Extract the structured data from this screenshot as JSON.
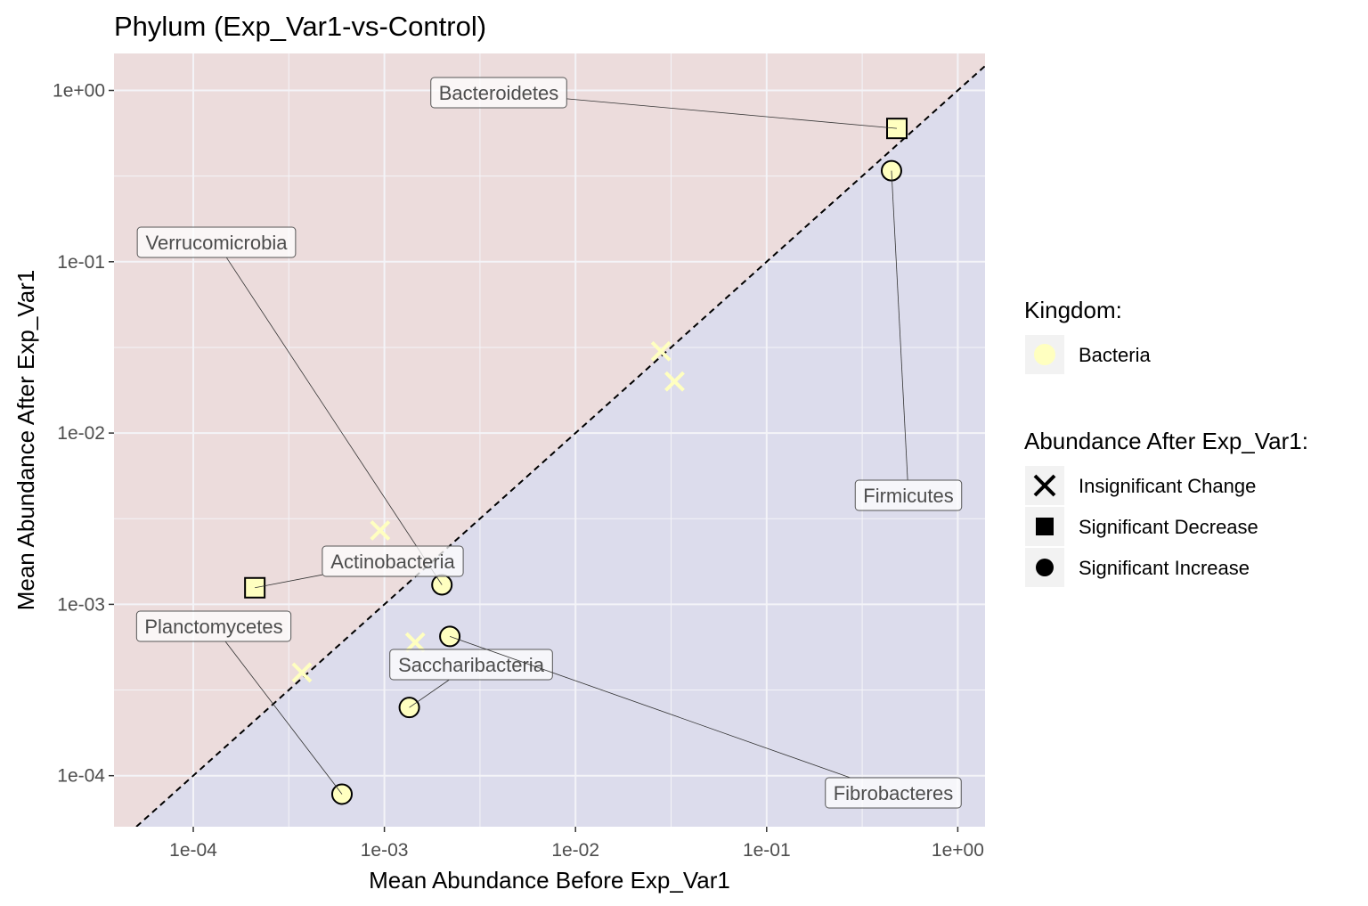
{
  "chart_data": {
    "type": "scatter",
    "title": "Phylum (Exp_Var1-vs-Control)",
    "xlabel": "Mean Abundance Before Exp_Var1",
    "ylabel": "Mean Abundance After Exp_Var1",
    "x_scale": "log10",
    "y_scale": "log10",
    "xlim": [
      5e-05,
      1.5
    ],
    "ylim": [
      5e-05,
      1.5
    ],
    "x_ticks": [
      0.0001,
      0.001,
      0.01,
      0.1,
      1
    ],
    "y_ticks": [
      0.0001,
      0.001,
      0.01,
      0.1,
      1
    ],
    "x_tick_labels": [
      "1e-04",
      "1e-03",
      "1e-02",
      "1e-01",
      "1e+00"
    ],
    "y_tick_labels": [
      "1e-04",
      "1e-03",
      "1e-02",
      "1e-01",
      "1e+00"
    ],
    "grid": true,
    "diagonal_line": "y = x (dashed)",
    "regions": {
      "above_diagonal_color": "#ecdcdc",
      "below_diagonal_color": "#dcdcec"
    },
    "point_fill": "#ffffc0",
    "points": [
      {
        "label": "Bacteroidetes",
        "x": 0.48,
        "y": 0.6,
        "status": "Significant Decrease"
      },
      {
        "label": "Firmicutes",
        "x": 0.45,
        "y": 0.34,
        "status": "Significant Increase"
      },
      {
        "label": "Verrucomicrobia",
        "x": 0.002,
        "y": 0.0013,
        "status": "Significant Increase"
      },
      {
        "label": "Actinobacteria",
        "x": 0.00021,
        "y": 0.00125,
        "status": "Significant Decrease"
      },
      {
        "label": "Planctomycetes",
        "x": 0.0006,
        "y": 7.8e-05,
        "status": "Significant Increase"
      },
      {
        "label": "Saccharibacteria",
        "x": 0.00135,
        "y": 0.00025,
        "status": "Significant Increase"
      },
      {
        "label": "Fibrobacteres",
        "x": 0.0022,
        "y": 0.00065,
        "status": "Significant Increase"
      },
      {
        "label": "",
        "x": 0.028,
        "y": 0.03,
        "status": "Insignificant Change"
      },
      {
        "label": "",
        "x": 0.033,
        "y": 0.02,
        "status": "Insignificant Change"
      },
      {
        "label": "",
        "x": 0.00095,
        "y": 0.0027,
        "status": "Insignificant Change"
      },
      {
        "label": "",
        "x": 0.00145,
        "y": 0.0006,
        "status": "Insignificant Change"
      },
      {
        "label": "",
        "x": 0.00037,
        "y": 0.0004,
        "status": "Insignificant Change"
      }
    ],
    "legend": {
      "placement": "right",
      "kingdom_title": "Kingdom:",
      "kingdom_items": [
        {
          "label": "Bacteria",
          "color": "#ffffc0"
        }
      ],
      "abundance_title": "Abundance After Exp_Var1:",
      "abundance_items": [
        {
          "label": "Insignificant Change",
          "shape": "x"
        },
        {
          "label": "Significant Decrease",
          "shape": "square"
        },
        {
          "label": "Significant Increase",
          "shape": "circle"
        }
      ]
    }
  }
}
